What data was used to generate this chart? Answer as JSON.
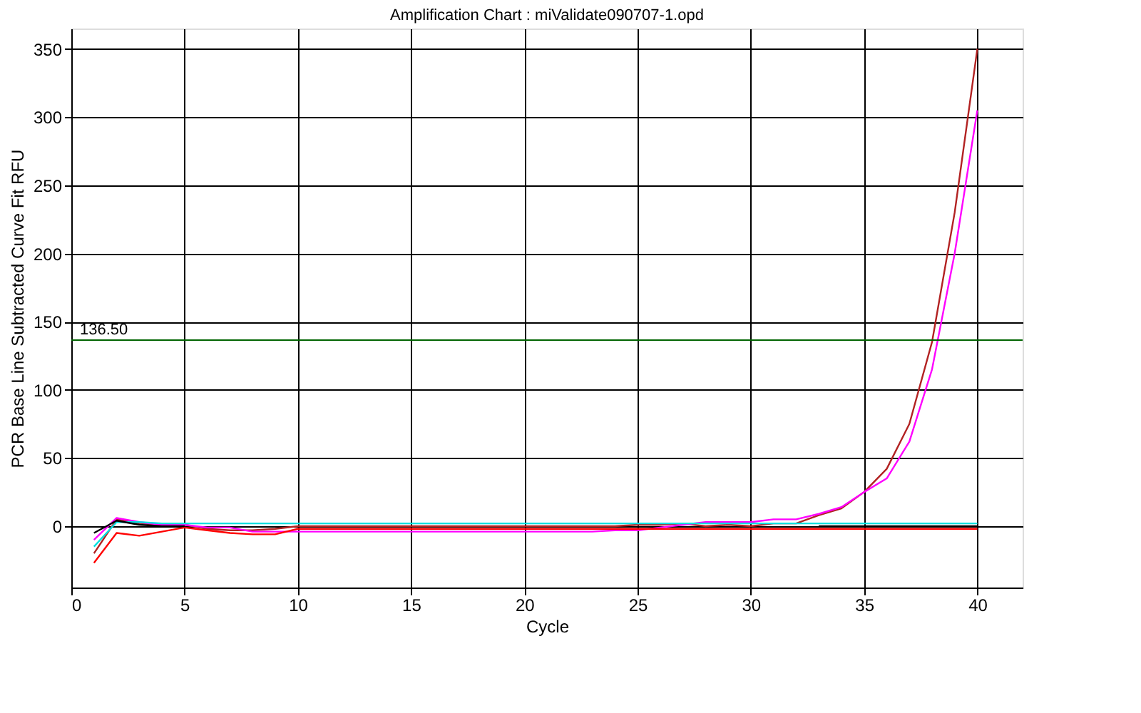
{
  "chart_data": {
    "type": "line",
    "title": "Amplification Chart : miValidate090707-1.opd",
    "xlabel": "Cycle",
    "ylabel": "PCR Base Line Subtracted Curve Fit RFU",
    "x": [
      1,
      2,
      3,
      4,
      5,
      6,
      7,
      8,
      9,
      10,
      11,
      12,
      13,
      14,
      15,
      16,
      17,
      18,
      19,
      20,
      21,
      22,
      23,
      24,
      25,
      26,
      27,
      28,
      29,
      30,
      31,
      32,
      33,
      34,
      35,
      36,
      37,
      38,
      39,
      40
    ],
    "series": [
      {
        "color": "#b22222",
        "values": [
          -20,
          5,
          2,
          1,
          1,
          -2,
          -3,
          -3,
          -2,
          0,
          0,
          0,
          0,
          0,
          0,
          0,
          0,
          0,
          0,
          0,
          0,
          0,
          0,
          0,
          1,
          1,
          2,
          0,
          1,
          0,
          2,
          2,
          8,
          13,
          25,
          42,
          75,
          135,
          230,
          350
        ]
      },
      {
        "color": "#ff00ff",
        "values": [
          -10,
          6,
          3,
          1,
          1,
          -1,
          -1,
          -4,
          -4,
          -4,
          -4,
          -4,
          -4,
          -4,
          -4,
          -4,
          -4,
          -4,
          -4,
          -4,
          -4,
          -4,
          -4,
          -3,
          -3,
          -1,
          1,
          3,
          3,
          3,
          5,
          5,
          9,
          14,
          25,
          35,
          62,
          115,
          200,
          305
        ]
      },
      {
        "color": "#00e0e0",
        "values": [
          -15,
          3,
          3,
          2,
          2,
          2,
          2,
          2,
          2,
          2,
          2,
          2,
          2,
          2,
          2,
          2,
          2,
          2,
          2,
          2,
          2,
          2,
          2,
          2,
          2,
          2,
          2,
          2,
          2,
          2,
          2,
          2,
          2,
          2,
          2,
          2,
          2,
          2,
          2,
          2
        ]
      },
      {
        "color": "#ff0000",
        "values": [
          -27,
          -5,
          -7,
          -4,
          -1,
          -3,
          -5,
          -6,
          -6,
          -2,
          -2,
          -2,
          -2,
          -2,
          -2,
          -2,
          -2,
          -2,
          -2,
          -2,
          -2,
          -2,
          -2,
          -2,
          -2,
          -2,
          -2,
          -2,
          -2,
          -2,
          -2,
          -2,
          -2,
          -2,
          -2,
          -2,
          -2,
          -2,
          -2,
          -2
        ]
      },
      {
        "color": "#000000",
        "values": [
          -5,
          4,
          1,
          0,
          0,
          null,
          null,
          null,
          null,
          null,
          null,
          null,
          null,
          null,
          null,
          null,
          null,
          null,
          null,
          null,
          null,
          null,
          null,
          null,
          null,
          null,
          null,
          null,
          null,
          null,
          null,
          null,
          0,
          0,
          0,
          0,
          0,
          0,
          0,
          0
        ]
      }
    ],
    "xlim": [
      0,
      42
    ],
    "ylim": [
      -45,
      365
    ],
    "xticks": [
      0,
      5,
      10,
      15,
      20,
      25,
      30,
      35,
      40
    ],
    "yticks": [
      0,
      50,
      100,
      150,
      200,
      250,
      300,
      350
    ],
    "ref_lines": [
      {
        "axis": "y",
        "value": 136.5,
        "label": "136.50",
        "color": "#006400"
      }
    ],
    "grid": true,
    "legend": false,
    "marker": "none",
    "line_style": "solid"
  }
}
